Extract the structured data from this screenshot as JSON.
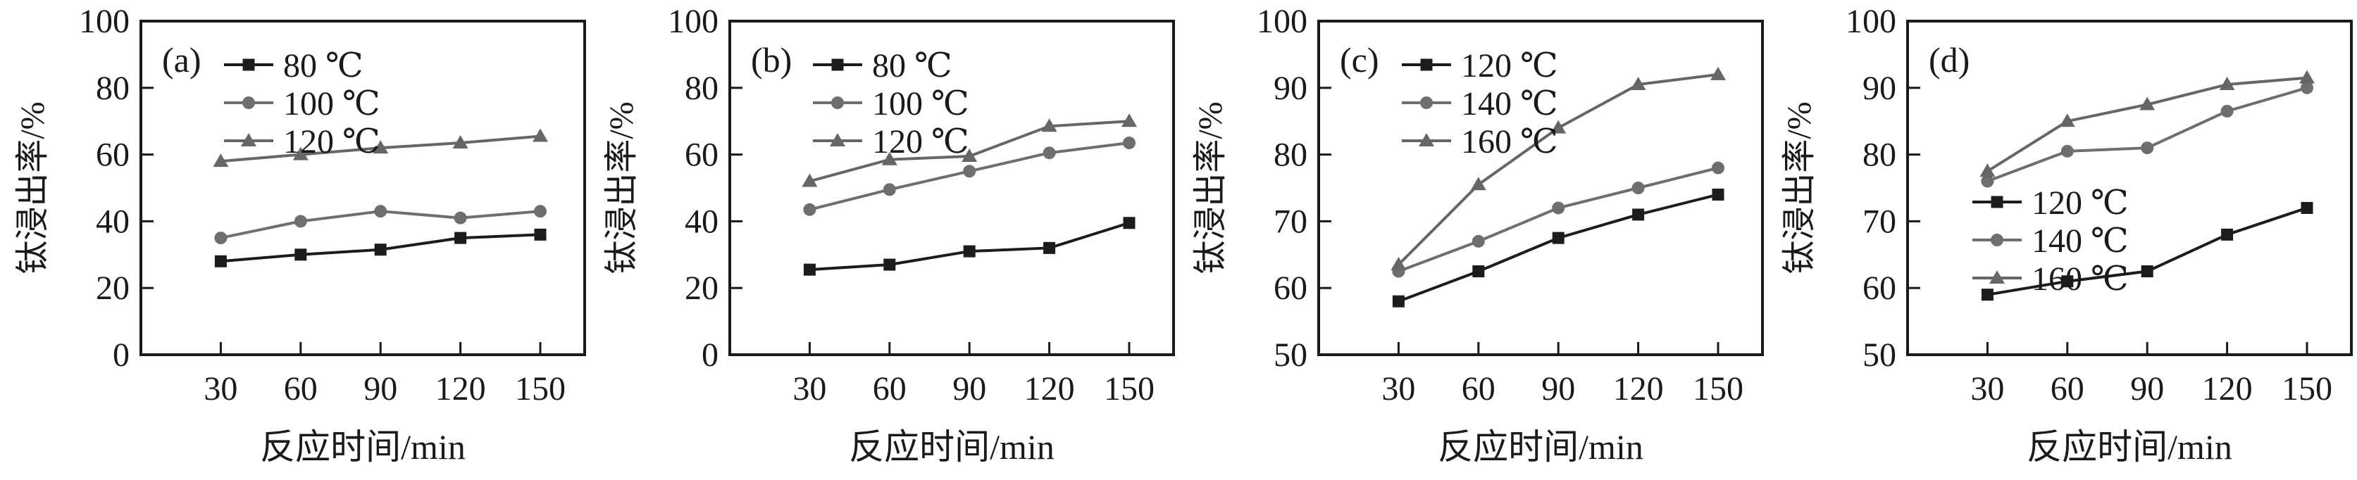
{
  "figure": {
    "background": "#ffffff",
    "axis_color": "#1a1a1a",
    "black_series_color": "#1c1c1c",
    "gray_series_color": "#6e6e6e"
  },
  "chart_data": [
    {
      "type": "line",
      "panel_label": "(a)",
      "x": [
        30,
        60,
        90,
        120,
        150
      ],
      "xlabel": "反应时间/min",
      "ylabel": "钛浸出率/%",
      "ylim": [
        0,
        100
      ],
      "yticks": [
        0,
        20,
        40,
        60,
        80,
        100
      ],
      "grid": false,
      "legend_position": "top-left",
      "series": [
        {
          "name": "80 ℃",
          "marker": "square",
          "color": "#1c1c1c",
          "values": [
            28,
            30,
            31.5,
            35,
            36
          ]
        },
        {
          "name": "100 ℃",
          "marker": "circle",
          "color": "#6e6e6e",
          "values": [
            35,
            40,
            43,
            41,
            43
          ]
        },
        {
          "name": "120 ℃",
          "marker": "triangle",
          "color": "#666666",
          "values": [
            58,
            60,
            62,
            63.5,
            65.5
          ]
        }
      ]
    },
    {
      "type": "line",
      "panel_label": "(b)",
      "x": [
        30,
        60,
        90,
        120,
        150
      ],
      "xlabel": "反应时间/min",
      "ylabel": "钛浸出率/%",
      "ylim": [
        0,
        100
      ],
      "yticks": [
        0,
        20,
        40,
        60,
        80,
        100
      ],
      "grid": false,
      "legend_position": "top-left",
      "series": [
        {
          "name": "80 ℃",
          "marker": "square",
          "color": "#1c1c1c",
          "values": [
            25.5,
            27,
            31,
            32,
            39.5
          ]
        },
        {
          "name": "100 ℃",
          "marker": "circle",
          "color": "#6e6e6e",
          "values": [
            43.5,
            49.5,
            55,
            60.5,
            63.5
          ]
        },
        {
          "name": "120 ℃",
          "marker": "triangle",
          "color": "#666666",
          "values": [
            52,
            58.5,
            59.5,
            68.5,
            70
          ]
        }
      ]
    },
    {
      "type": "line",
      "panel_label": "(c)",
      "x": [
        30,
        60,
        90,
        120,
        150
      ],
      "xlabel": "反应时间/min",
      "ylabel": "钛浸出率/%",
      "ylim": [
        50,
        100
      ],
      "yticks": [
        50,
        60,
        70,
        80,
        90,
        100
      ],
      "grid": false,
      "legend_position": "top-left",
      "series": [
        {
          "name": "120 ℃",
          "marker": "square",
          "color": "#1c1c1c",
          "values": [
            58,
            62.5,
            67.5,
            71,
            74
          ]
        },
        {
          "name": "140 ℃",
          "marker": "circle",
          "color": "#6e6e6e",
          "values": [
            62.5,
            67,
            72,
            75,
            78
          ]
        },
        {
          "name": "160 ℃",
          "marker": "triangle",
          "color": "#666666",
          "values": [
            63.5,
            75.5,
            84,
            90.5,
            92
          ]
        }
      ]
    },
    {
      "type": "line",
      "panel_label": "(d)",
      "x": [
        30,
        60,
        90,
        120,
        150
      ],
      "xlabel": "反应时间/min",
      "ylabel": "钛浸出率/%",
      "ylim": [
        50,
        100
      ],
      "yticks": [
        50,
        60,
        70,
        80,
        90,
        100
      ],
      "grid": false,
      "legend_position": "middle-left",
      "series": [
        {
          "name": "120 ℃",
          "marker": "square",
          "color": "#1c1c1c",
          "values": [
            59,
            61,
            62.5,
            68,
            72
          ]
        },
        {
          "name": "140 ℃",
          "marker": "circle",
          "color": "#6e6e6e",
          "values": [
            76,
            80.5,
            81,
            86.5,
            90
          ]
        },
        {
          "name": "160 ℃",
          "marker": "triangle",
          "color": "#666666",
          "values": [
            77.5,
            85,
            87.5,
            90.5,
            91.5
          ]
        }
      ]
    }
  ]
}
